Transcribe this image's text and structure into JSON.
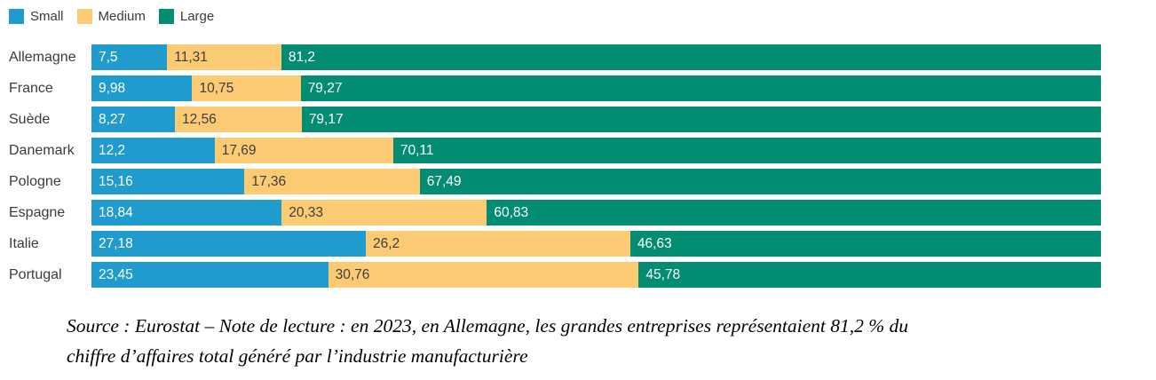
{
  "legend": {
    "items": [
      {
        "label": "Small",
        "color": "#1f9bcd"
      },
      {
        "label": "Medium",
        "color": "#fdca74"
      },
      {
        "label": "Large",
        "color": "#028d72"
      }
    ]
  },
  "chart_data": {
    "type": "bar",
    "orientation": "horizontal",
    "stacked": true,
    "unit": "%",
    "xlim": [
      0,
      100
    ],
    "grid": false,
    "legend_position": "top-left",
    "categories": [
      "Allemagne",
      "France",
      "Suède",
      "Danemark",
      "Pologne",
      "Espagne",
      "Italie",
      "Portugal"
    ],
    "series": [
      {
        "name": "Small",
        "color": "#1f9bcd",
        "label_color": "#ffffff",
        "values": [
          7.5,
          9.98,
          8.27,
          12.2,
          15.16,
          18.84,
          27.18,
          23.45
        ],
        "labels": [
          "7,5",
          "9,98",
          "8,27",
          "12,2",
          "15,16",
          "18,84",
          "27,18",
          "23,45"
        ]
      },
      {
        "name": "Medium",
        "color": "#fdca74",
        "label_color": "#3d3d3d",
        "values": [
          11.31,
          10.75,
          12.56,
          17.69,
          17.36,
          20.33,
          26.2,
          30.76
        ],
        "labels": [
          "11,31",
          "10,75",
          "12,56",
          "17,69",
          "17,36",
          "20,33",
          "26,2",
          "30,76"
        ]
      },
      {
        "name": "Large",
        "color": "#028d72",
        "label_color": "#ffffff",
        "values": [
          81.2,
          79.27,
          79.17,
          70.11,
          67.49,
          60.83,
          46.63,
          45.78
        ],
        "labels": [
          "81,2",
          "79,27",
          "79,17",
          "70,11",
          "67,49",
          "60,83",
          "46,63",
          "45,78"
        ]
      }
    ]
  },
  "source_note": {
    "lines": [
      "Source : Eurostat – Note de lecture : en 2023, en Allemagne, les grandes entreprises représentaient 81,2 % du",
      "chiffre d’affaires total généré par l’industrie manufacturière"
    ]
  }
}
